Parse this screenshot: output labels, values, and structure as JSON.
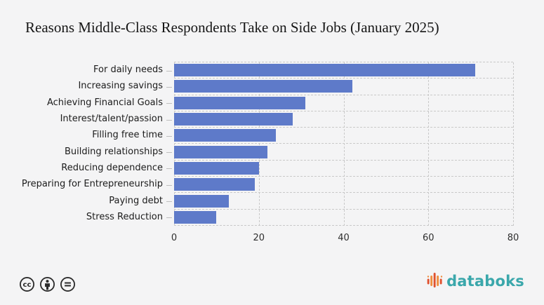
{
  "title": "Reasons Middle-Class Respondents Take on Side Jobs (January 2025)",
  "chart_data": {
    "type": "bar",
    "orientation": "horizontal",
    "title": "Reasons Middle-Class Respondents Take on Side Jobs (January 2025)",
    "categories": [
      "For daily needs",
      "Increasing savings",
      "Achieving Financial Goals",
      "Interest/talent/passion",
      "Filling free time",
      "Building relationships",
      "Reducing dependence",
      "Preparing for Entrepreneurship",
      "Paying debt",
      "Stress Reduction"
    ],
    "values": [
      71,
      42,
      31,
      28,
      24,
      22,
      20,
      19,
      13,
      10
    ],
    "xlabel": "",
    "ylabel": "",
    "xlim": [
      0,
      80
    ],
    "xticks": [
      0,
      20,
      40,
      60,
      80
    ],
    "grid": true,
    "legend": false,
    "bar_color": "#5e7ac9"
  },
  "footer": {
    "license_icons": [
      "cc-icon",
      "attribution-icon",
      "no-derivatives-icon"
    ],
    "brand": "databoks"
  },
  "colors": {
    "background": "#f4f4f5",
    "bar": "#5e7ac9",
    "gridline": "#c9c9c9",
    "title_text": "#161616",
    "label_text": "#1c1c1c",
    "tick_text": "#2e2e2e",
    "brand_teal": "#3aa7ab",
    "logo_red": "#e0512e",
    "logo_orange": "#ef8d3d",
    "license_icon": "#2b2b2b"
  }
}
